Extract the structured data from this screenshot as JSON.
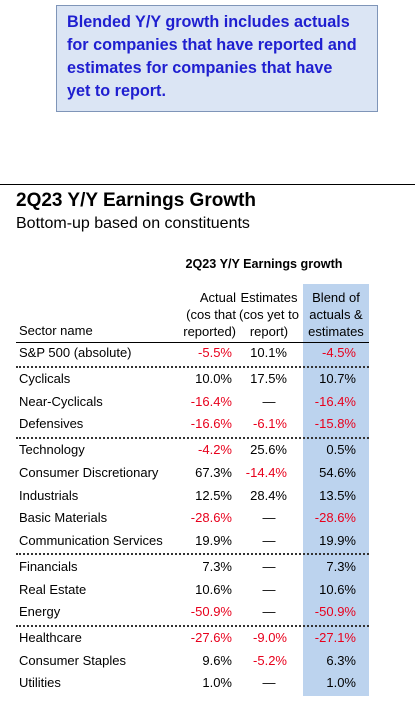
{
  "callout": {
    "lines": [
      "Blended Y/Y growth includes actuals",
      "for companies that have reported and",
      "estimates for companies that have",
      "yet to report."
    ]
  },
  "chart_data": {
    "type": "table",
    "title": "2Q23 Y/Y Earnings Growth",
    "subtitle": "Bottom-up based on constituents",
    "table_title": "2Q23 Y/Y Earnings growth",
    "columns": {
      "sector": "Sector name",
      "actual": [
        "Actual",
        "(cos that",
        "reported)"
      ],
      "estimates": [
        "Estimates",
        "(cos yet to",
        "report)"
      ],
      "blend": [
        "Blend of",
        "actuals &",
        "estimates"
      ]
    },
    "groups": [
      {
        "rows": [
          {
            "sector": "S&P 500 (absolute)",
            "actual": "-5.5%",
            "estimates": "10.1%",
            "blend": "-4.5%"
          }
        ]
      },
      {
        "rows": [
          {
            "sector": "Cyclicals",
            "actual": "10.0%",
            "estimates": "17.5%",
            "blend": "10.7%"
          },
          {
            "sector": "Near-Cyclicals",
            "actual": "-16.4%",
            "estimates": "—",
            "blend": "-16.4%"
          },
          {
            "sector": "Defensives",
            "actual": "-16.6%",
            "estimates": "-6.1%",
            "blend": "-15.8%"
          }
        ]
      },
      {
        "rows": [
          {
            "sector": "Technology",
            "actual": "-4.2%",
            "estimates": "25.6%",
            "blend": "0.5%"
          },
          {
            "sector": "Consumer Discretionary",
            "actual": "67.3%",
            "estimates": "-14.4%",
            "blend": "54.6%"
          },
          {
            "sector": "Industrials",
            "actual": "12.5%",
            "estimates": "28.4%",
            "blend": "13.5%"
          },
          {
            "sector": "Basic Materials",
            "actual": "-28.6%",
            "estimates": "—",
            "blend": "-28.6%"
          },
          {
            "sector": "Communication Services",
            "actual": "19.9%",
            "estimates": "—",
            "blend": "19.9%"
          }
        ]
      },
      {
        "rows": [
          {
            "sector": "Financials",
            "actual": "7.3%",
            "estimates": "—",
            "blend": "7.3%"
          },
          {
            "sector": "Real Estate",
            "actual": "10.6%",
            "estimates": "—",
            "blend": "10.6%"
          },
          {
            "sector": "Energy",
            "actual": "-50.9%",
            "estimates": "—",
            "blend": "-50.9%"
          }
        ]
      },
      {
        "rows": [
          {
            "sector": "Healthcare",
            "actual": "-27.6%",
            "estimates": "-9.0%",
            "blend": "-27.1%"
          },
          {
            "sector": "Consumer Staples",
            "actual": "9.6%",
            "estimates": "-5.2%",
            "blend": "6.3%"
          },
          {
            "sector": "Utilities",
            "actual": "1.0%",
            "estimates": "—",
            "blend": "1.0%"
          }
        ]
      }
    ],
    "negative_color": "#e8001c",
    "blend_highlight_color": "#bcd3ee"
  }
}
